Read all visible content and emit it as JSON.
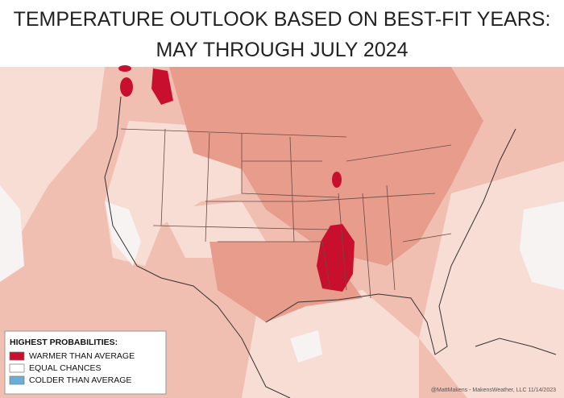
{
  "header": {
    "title_lines": [
      "TEMPERATURE OUTLOOK BASED ON BEST-FIT YEARS:",
      "MAY THROUGH JULY 2024"
    ]
  },
  "legend": {
    "title": "HIGHEST PROBABILITIES:",
    "items": [
      {
        "label": "WARMER THAN AVERAGE",
        "color": "#c8102e"
      },
      {
        "label": "EQUAL CHANCES",
        "color": "#ffffff"
      },
      {
        "label": "COLDER THAN AVERAGE",
        "color": "#6baed6"
      }
    ]
  },
  "credit": "@MattMakens - MakensWeather, LLC 11/14/2023"
}
